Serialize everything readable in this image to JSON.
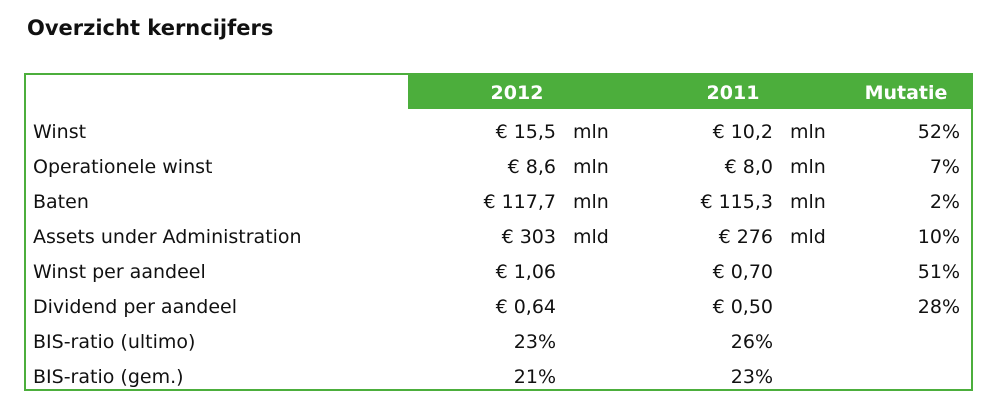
{
  "header": {
    "title": "Overzicht kerncijfers"
  },
  "table": {
    "columns": {
      "y2012": "2012",
      "y2011": "2011",
      "mutatie": "Mutatie"
    },
    "rows": [
      {
        "label": "Winst",
        "v2012": "€ 15,5",
        "u2012": "mln",
        "v2011": "€ 10,2",
        "u2011": "mln",
        "mutatie": "52%"
      },
      {
        "label": "Operationele winst",
        "v2012": "€ 8,6",
        "u2012": "mln",
        "v2011": "€ 8,0",
        "u2011": "mln",
        "mutatie": "7%"
      },
      {
        "label": "Baten",
        "v2012": "€ 117,7",
        "u2012": "mln",
        "v2011": "€ 115,3",
        "u2011": "mln",
        "mutatie": "2%"
      },
      {
        "label": "Assets under Administration",
        "v2012": "€ 303",
        "u2012": "mld",
        "v2011": "€ 276",
        "u2011": "mld",
        "mutatie": "10%"
      },
      {
        "label": "Winst per aandeel",
        "v2012": "€ 1,06",
        "v2011": "€ 0,70",
        "mutatie": "51%"
      },
      {
        "label": "Dividend per aandeel",
        "v2012": "€ 0,64",
        "v2011": "€ 0,50",
        "mutatie": "28%"
      },
      {
        "label": "BIS-ratio (ultimo)",
        "v2012": "23%",
        "v2011": "26%"
      },
      {
        "label": "BIS-ratio (gem.)",
        "v2012": "21%",
        "v2011": "23%"
      }
    ]
  }
}
